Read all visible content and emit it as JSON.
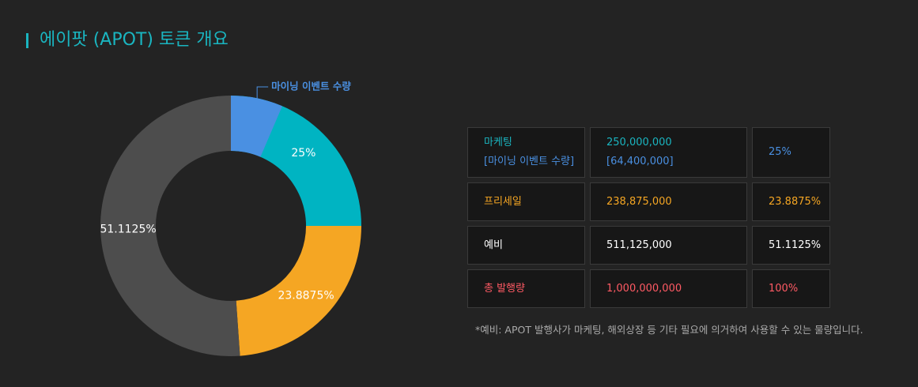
{
  "header": {
    "title": "에이팟 (APOT) 토큰 개요"
  },
  "chart_data": {
    "type": "donut",
    "start_angle": 0,
    "hole": 0.576,
    "values": [
      25,
      23.8875,
      51.1125
    ],
    "value_labels": [
      "25%",
      "23.8875%",
      "51.1125%"
    ],
    "colors": [
      "#00b4c2",
      "#f5a623",
      "#4d4d4d"
    ],
    "highlight": {
      "name": "마이닝 이벤트 수량",
      "value": 6.44,
      "color": "#4a90e2"
    }
  },
  "table": {
    "rows": [
      {
        "cells": [
          {
            "lines": [
              "마케팅",
              "[마이닝 이벤트 수량]"
            ],
            "colors": [
              "#1ab5c0",
              "#4a90e2"
            ]
          },
          {
            "lines": [
              "250,000,000",
              "[64,400,000]"
            ],
            "colors": [
              "#1ab5c0",
              "#4a90e2"
            ]
          },
          {
            "lines": [
              "25%"
            ],
            "colors": [
              "#4a90e2"
            ]
          }
        ]
      },
      {
        "cells": [
          {
            "lines": [
              "프리세일"
            ],
            "colors": [
              "#f5a623"
            ]
          },
          {
            "lines": [
              "238,875,000"
            ],
            "colors": [
              "#f5a623"
            ]
          },
          {
            "lines": [
              "23.8875%"
            ],
            "colors": [
              "#f5a623"
            ]
          }
        ]
      },
      {
        "cells": [
          {
            "lines": [
              "예비"
            ],
            "colors": [
              "#ffffff"
            ]
          },
          {
            "lines": [
              "511,125,000"
            ],
            "colors": [
              "#ffffff"
            ]
          },
          {
            "lines": [
              "51.1125%"
            ],
            "colors": [
              "#ffffff"
            ]
          }
        ]
      },
      {
        "cells": [
          {
            "lines": [
              "총 발행량"
            ],
            "colors": [
              "#ff5a64"
            ]
          },
          {
            "lines": [
              "1,000,000,000"
            ],
            "colors": [
              "#ff5a64"
            ]
          },
          {
            "lines": [
              "100%"
            ],
            "colors": [
              "#ff5a64"
            ]
          }
        ]
      }
    ]
  },
  "footnote": "*예비: APOT 발행사가 마케팅, 해외상장 등 기타 필요에 의거하여 사용할 수 있는 물량입니다."
}
